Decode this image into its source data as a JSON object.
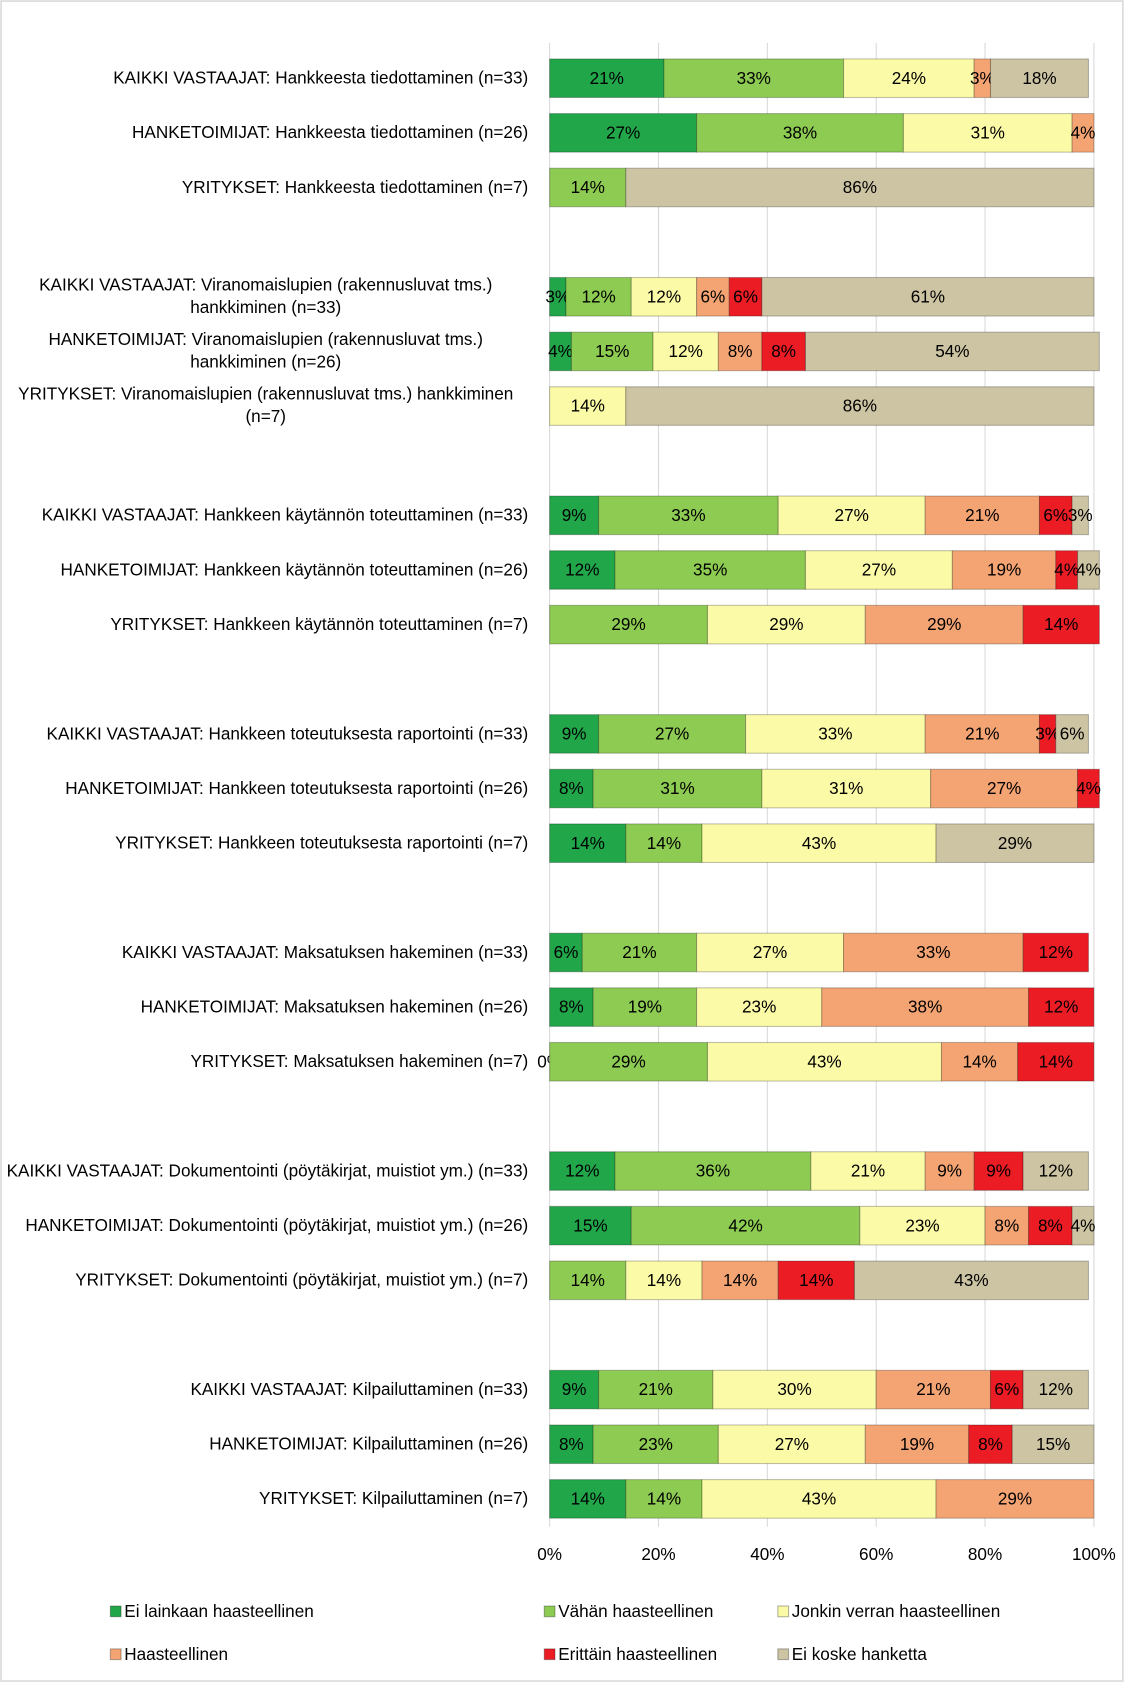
{
  "chart_data": {
    "type": "stacked-barh",
    "categories": [
      "KAIKKI VASTAAJAT: Hankkeesta tiedottaminen (n=33)",
      "HANKETOIMIJAT: Hankkeesta tiedottaminen (n=26)",
      "YRITYKSET: Hankkeesta tiedottaminen (n=7)",
      "KAIKKI VASTAAJAT: Viranomaislupien (rakennusluvat tms.) hankkiminen (n=33)",
      "HANKETOIMIJAT: Viranomaislupien (rakennusluvat tms.) hankkiminen (n=26)",
      "YRITYKSET: Viranomaislupien (rakennusluvat tms.) hankkiminen (n=7)",
      "KAIKKI VASTAAJAT: Hankkeen käytännön toteuttaminen (n=33)",
      "HANKETOIMIJAT: Hankkeen käytännön toteuttaminen (n=26)",
      "YRITYKSET: Hankkeen käytännön toteuttaminen (n=7)",
      "KAIKKI VASTAAJAT: Hankkeen toteutuksesta raportointi (n=33)",
      "HANKETOIMIJAT: Hankkeen toteutuksesta raportointi (n=26)",
      "YRITYKSET: Hankkeen toteutuksesta raportointi (n=7)",
      "KAIKKI VASTAAJAT: Maksatuksen hakeminen (n=33)",
      "HANKETOIMIJAT: Maksatuksen hakeminen (n=26)",
      "YRITYKSET: Maksatuksen hakeminen (n=7)",
      "KAIKKI VASTAAJAT: Dokumentointi (pöytäkirjat, muistiot ym.) (n=33)",
      "HANKETOIMIJAT: Dokumentointi (pöytäkirjat, muistiot ym.) (n=26)",
      "YRITYKSET: Dokumentointi (pöytäkirjat, muistiot ym.) (n=7)",
      "KAIKKI VASTAAJAT: Kilpailuttaminen (n=33)",
      "HANKETOIMIJAT: Kilpailuttaminen (n=26)",
      "YRITYKSET: Kilpailuttaminen (n=7)"
    ],
    "series": [
      {
        "name": "Ei lainkaan haasteellinen",
        "color": "#21a64a",
        "values": [
          21,
          27,
          0,
          3,
          4,
          0,
          9,
          12,
          0,
          9,
          8,
          14,
          6,
          8,
          0,
          12,
          15,
          0,
          9,
          8,
          14
        ],
        "value_labels": [
          "21%",
          "27%",
          null,
          "3%",
          "4%",
          null,
          "9%",
          "12%",
          null,
          "9%",
          "8%",
          "14%",
          "6%",
          "8%",
          "0%",
          "12%",
          "15%",
          null,
          "9%",
          "8%",
          "14%"
        ]
      },
      {
        "name": "Vähän haasteellinen",
        "color": "#8dcb52",
        "values": [
          33,
          38,
          14,
          12,
          15,
          0,
          33,
          35,
          29,
          27,
          31,
          14,
          21,
          19,
          29,
          36,
          42,
          14,
          21,
          23,
          14
        ],
        "value_labels": [
          "33%",
          "38%",
          "14%",
          "12%",
          "15%",
          null,
          "33%",
          "35%",
          "29%",
          "27%",
          "31%",
          "14%",
          "21%",
          "19%",
          "29%",
          "36%",
          "42%",
          "14%",
          "21%",
          "23%",
          "14%"
        ]
      },
      {
        "name": "Jonkin verran haasteellinen",
        "color": "#fbfaa6",
        "values": [
          24,
          31,
          0,
          12,
          12,
          14,
          27,
          27,
          29,
          33,
          31,
          43,
          27,
          23,
          43,
          21,
          23,
          14,
          30,
          27,
          43
        ],
        "value_labels": [
          "24%",
          "31%",
          null,
          "12%",
          "12%",
          "14%",
          "27%",
          "27%",
          "29%",
          "33%",
          "31%",
          "43%",
          "27%",
          "23%",
          "43%",
          "21%",
          "23%",
          "14%",
          "30%",
          "27%",
          "43%"
        ]
      },
      {
        "name": "Haasteellinen",
        "color": "#f4a473",
        "values": [
          3,
          4,
          0,
          6,
          8,
          0,
          21,
          19,
          29,
          21,
          27,
          0,
          33,
          38,
          14,
          9,
          8,
          14,
          21,
          19,
          29
        ],
        "value_labels": [
          "3%",
          "4%",
          null,
          "6%",
          "8%",
          null,
          "21%",
          "19%",
          "29%",
          "21%",
          "27%",
          null,
          "33%",
          "38%",
          "14%",
          "9%",
          "8%",
          "14%",
          "21%",
          "19%",
          "29%"
        ]
      },
      {
        "name": "Erittäin haasteellinen",
        "color": "#ec1c24",
        "values": [
          0,
          0,
          0,
          6,
          8,
          0,
          6,
          4,
          14,
          3,
          4,
          0,
          12,
          12,
          14,
          9,
          8,
          14,
          6,
          8,
          0
        ],
        "value_labels": [
          null,
          null,
          null,
          "6%",
          "8%",
          null,
          "6%",
          "4%",
          "14%",
          "3%",
          "4%",
          null,
          "12%",
          "12%",
          "14%",
          "9%",
          "8%",
          "14%",
          "6%",
          "8%",
          null
        ]
      },
      {
        "name": "Ei koske hanketta",
        "color": "#cdc4a3",
        "values": [
          18,
          0,
          86,
          61,
          54,
          86,
          3,
          4,
          0,
          6,
          0,
          29,
          0,
          0,
          0,
          12,
          4,
          43,
          12,
          15,
          0
        ],
        "value_labels": [
          "18%",
          null,
          "86%",
          "61%",
          "54%",
          "86%",
          "3%",
          "4%",
          null,
          "6%",
          null,
          "29%",
          null,
          null,
          null,
          "12%",
          "4%",
          "43%",
          "12%",
          "15%",
          null
        ]
      }
    ],
    "xlim": [
      0,
      100
    ],
    "xticks": [
      {
        "value": 0,
        "label": "0%"
      },
      {
        "value": 20,
        "label": "20%"
      },
      {
        "value": 40,
        "label": "40%"
      },
      {
        "value": 60,
        "label": "60%"
      },
      {
        "value": 80,
        "label": "80%"
      },
      {
        "value": 100,
        "label": "100%"
      }
    ],
    "grid": true,
    "legend": "bottom"
  }
}
